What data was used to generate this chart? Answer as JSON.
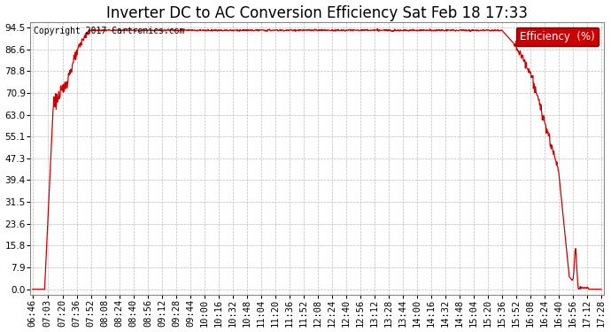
{
  "title": "Inverter DC to AC Conversion Efficiency Sat Feb 18 17:33",
  "copyright": "Copyright 2017 Cartronics.com",
  "legend_label": "Efficiency  (%)",
  "legend_bg": "#cc0000",
  "legend_fg": "#ffffff",
  "line_color": "#cc0000",
  "background_color": "#ffffff",
  "plot_bg": "#ffffff",
  "grid_color": "#bbbbbb",
  "ytick_labels": [
    "0.0",
    "7.9",
    "15.8",
    "23.6",
    "31.5",
    "39.4",
    "47.3",
    "55.1",
    "63.0",
    "70.9",
    "78.8",
    "86.6",
    "94.5"
  ],
  "ytick_values": [
    0.0,
    7.9,
    15.8,
    23.6,
    31.5,
    39.4,
    47.3,
    55.1,
    63.0,
    70.9,
    78.8,
    86.6,
    94.5
  ],
  "xtick_labels": [
    "06:46",
    "07:03",
    "07:20",
    "07:36",
    "07:52",
    "08:08",
    "08:24",
    "08:40",
    "08:56",
    "09:12",
    "09:28",
    "09:44",
    "10:00",
    "10:16",
    "10:32",
    "10:48",
    "11:04",
    "11:20",
    "11:36",
    "11:52",
    "12:08",
    "12:24",
    "12:40",
    "12:56",
    "13:12",
    "13:28",
    "13:44",
    "14:00",
    "14:16",
    "14:32",
    "14:48",
    "15:04",
    "15:20",
    "15:36",
    "15:52",
    "16:08",
    "16:24",
    "16:40",
    "16:56",
    "17:12",
    "17:28"
  ],
  "ylim_min": 0.0,
  "ylim_max": 94.5,
  "title_fontsize": 12,
  "copyright_fontsize": 7,
  "tick_fontsize": 7.5,
  "legend_fontsize": 8.5
}
